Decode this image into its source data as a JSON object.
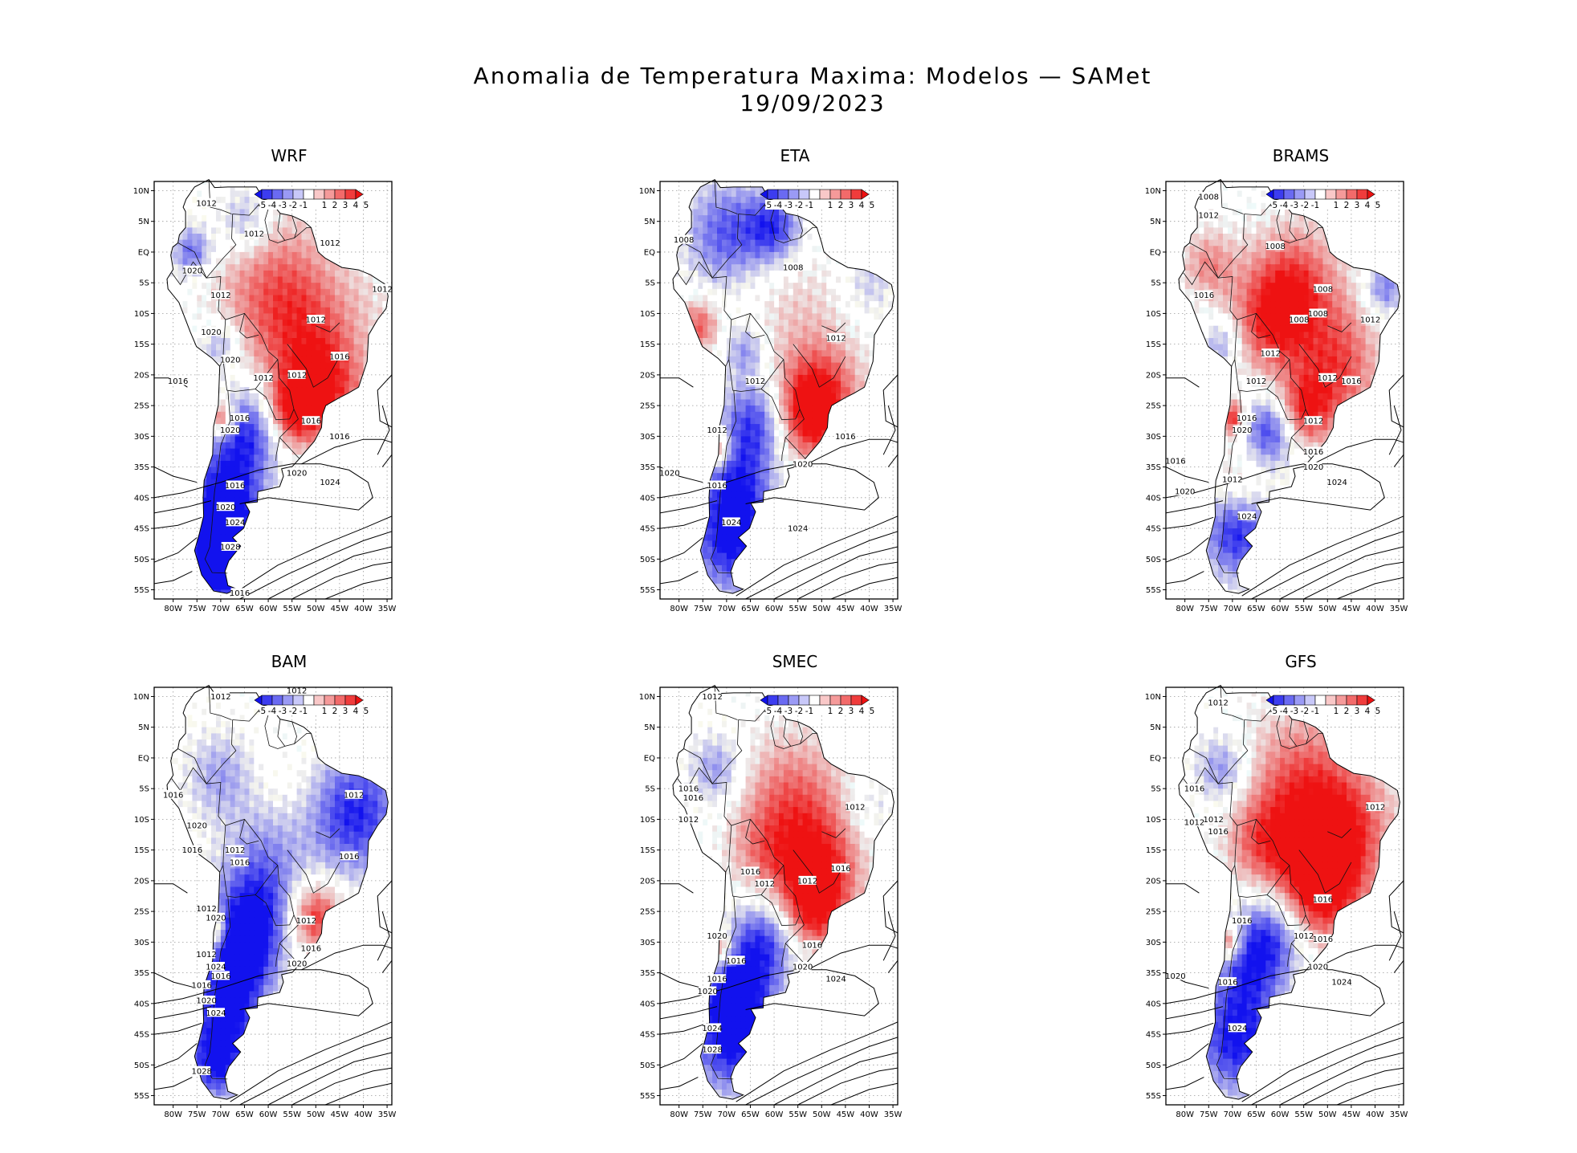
{
  "header": {
    "title": "Anomalia de Temperatura Maxima: Modelos — SAMet",
    "date": "19/09/2023"
  },
  "axes": {
    "lat_labels": [
      "10N",
      "5N",
      "EQ",
      "5S",
      "10S",
      "15S",
      "20S",
      "25S",
      "30S",
      "35S",
      "40S",
      "45S",
      "50S",
      "55S"
    ],
    "lon_labels": [
      "80W",
      "75W",
      "70W",
      "65W",
      "60W",
      "55W",
      "50W",
      "45W",
      "40W",
      "35W"
    ],
    "lat_range": [
      11.5,
      -56.5
    ],
    "lon_range": [
      -84,
      -34
    ]
  },
  "colorbar": {
    "labels": [
      "-5",
      "-4",
      "-3",
      "-2",
      "-1",
      "1",
      "2",
      "3",
      "4",
      "5"
    ],
    "colors": [
      "#1111ee",
      "#3c3cf0",
      "#6a6af2",
      "#9a9af5",
      "#c8c8f9",
      "#ffffff",
      "#f9c8c8",
      "#f59a9a",
      "#f26a6a",
      "#f03c3c",
      "#ee1111"
    ]
  },
  "colors": {
    "warm": "#ee1c1c",
    "cold": "#1c1cee",
    "contour": "#000000"
  },
  "panels": [
    {
      "name": "WRF",
      "labels": [
        {
          "t": "1012",
          "lon": -73,
          "lat": 8
        },
        {
          "t": "1012",
          "lon": -63,
          "lat": 3
        },
        {
          "t": "1012",
          "lon": -47,
          "lat": 1.5
        },
        {
          "t": "1020",
          "lon": -76,
          "lat": -3
        },
        {
          "t": "1012",
          "lon": -70,
          "lat": -7
        },
        {
          "t": "1012",
          "lon": -50,
          "lat": -11
        },
        {
          "t": "1012",
          "lon": -36,
          "lat": -6
        },
        {
          "t": "1020",
          "lon": -72,
          "lat": -13
        },
        {
          "t": "1020",
          "lon": -68,
          "lat": -17.5
        },
        {
          "t": "1016",
          "lon": -79,
          "lat": -21
        },
        {
          "t": "1012",
          "lon": -61,
          "lat": -20.5
        },
        {
          "t": "1012",
          "lon": -54,
          "lat": -20
        },
        {
          "t": "1016",
          "lon": -45,
          "lat": -17
        },
        {
          "t": "1016",
          "lon": -66,
          "lat": -27
        },
        {
          "t": "1020",
          "lon": -68,
          "lat": -29
        },
        {
          "t": "1016",
          "lon": -51,
          "lat": -27.5
        },
        {
          "t": "1016",
          "lon": -45,
          "lat": -30
        },
        {
          "t": "1020",
          "lon": -54,
          "lat": -36
        },
        {
          "t": "1024",
          "lon": -47,
          "lat": -37.5
        },
        {
          "t": "1016",
          "lon": -67,
          "lat": -38
        },
        {
          "t": "1020",
          "lon": -69,
          "lat": -41.5
        },
        {
          "t": "1024",
          "lon": -67,
          "lat": -44
        },
        {
          "t": "1028",
          "lon": -68,
          "lat": -48
        },
        {
          "t": "1016",
          "lon": -66,
          "lat": -55.5
        }
      ],
      "zones": [
        {
          "lon": -60,
          "lat": -5,
          "r": 9,
          "v": 2.4
        },
        {
          "lon": -53,
          "lat": -12,
          "r": 8,
          "v": 2.8
        },
        {
          "lon": -48,
          "lat": -22,
          "r": 6,
          "v": 4.2
        },
        {
          "lon": -55,
          "lat": -26,
          "r": 4,
          "v": 4.5
        },
        {
          "lon": -38,
          "lat": -8,
          "r": 5,
          "v": 0.6
        },
        {
          "lon": -65,
          "lat": 5,
          "r": 4,
          "v": -2.5
        },
        {
          "lon": -64,
          "lat": -29,
          "r": 5,
          "v": -4.3
        },
        {
          "lon": -69,
          "lat": -38,
          "r": 5,
          "v": -3.5
        },
        {
          "lon": -69,
          "lat": -46,
          "r": 6,
          "v": -5
        },
        {
          "lon": -71,
          "lat": -52,
          "r": 4,
          "v": -4.8
        },
        {
          "lon": -76,
          "lat": 0,
          "r": 3,
          "v": -3.5
        },
        {
          "lon": -70,
          "lat": -15,
          "r": 3,
          "v": -2.5
        },
        {
          "lon": -70,
          "lat": -27,
          "r": 2,
          "v": 4.5
        }
      ]
    },
    {
      "name": "ETA",
      "labels": [
        {
          "t": "1008",
          "lon": -79,
          "lat": 2
        },
        {
          "t": "1008",
          "lon": -56,
          "lat": -2.5
        },
        {
          "t": "1012",
          "lon": -47,
          "lat": -14
        },
        {
          "t": "1012",
          "lon": -64,
          "lat": -21
        },
        {
          "t": "1012",
          "lon": -72,
          "lat": -29
        },
        {
          "t": "1016",
          "lon": -45,
          "lat": -30
        },
        {
          "t": "1020",
          "lon": -54,
          "lat": -34.5
        },
        {
          "t": "1020",
          "lon": -82,
          "lat": -36
        },
        {
          "t": "1016",
          "lon": -72,
          "lat": -38
        },
        {
          "t": "1024",
          "lon": -69,
          "lat": -44
        },
        {
          "t": "1024",
          "lon": -55,
          "lat": -45
        }
      ],
      "zones": [
        {
          "lon": -70,
          "lat": 3,
          "r": 6,
          "v": -3.6
        },
        {
          "lon": -60,
          "lat": 4,
          "r": 4,
          "v": -4
        },
        {
          "lon": -55,
          "lat": -10,
          "r": 8,
          "v": 1.3
        },
        {
          "lon": -50,
          "lat": -23,
          "r": 6,
          "v": 3.6
        },
        {
          "lon": -53,
          "lat": -27,
          "r": 5,
          "v": 4
        },
        {
          "lon": -40,
          "lat": -5,
          "r": 4,
          "v": -1.5
        },
        {
          "lon": -64,
          "lat": -28,
          "r": 5,
          "v": -4.3
        },
        {
          "lon": -68,
          "lat": -38,
          "r": 5,
          "v": -3.5
        },
        {
          "lon": -69,
          "lat": -47,
          "r": 6,
          "v": -5
        },
        {
          "lon": -76,
          "lat": -12,
          "r": 3,
          "v": 3.5
        },
        {
          "lon": -66,
          "lat": -16,
          "r": 3,
          "v": -2.5
        },
        {
          "lon": -72,
          "lat": -32,
          "r": 2,
          "v": 4.5
        }
      ]
    },
    {
      "name": "BRAMS",
      "labels": [
        {
          "t": "1008",
          "lon": -75,
          "lat": 9
        },
        {
          "t": "1012",
          "lon": -75,
          "lat": 6
        },
        {
          "t": "1008",
          "lon": -61,
          "lat": 1
        },
        {
          "t": "1016",
          "lon": -76,
          "lat": -7
        },
        {
          "t": "1008",
          "lon": -51,
          "lat": -6
        },
        {
          "t": "1008",
          "lon": -52,
          "lat": -10
        },
        {
          "t": "1008",
          "lon": -56,
          "lat": -11
        },
        {
          "t": "1012",
          "lon": -41,
          "lat": -11
        },
        {
          "t": "1012",
          "lon": -62,
          "lat": -16.5
        },
        {
          "t": "1012",
          "lon": -65,
          "lat": -21
        },
        {
          "t": "1012",
          "lon": -50,
          "lat": -20.5
        },
        {
          "t": "1016",
          "lon": -45,
          "lat": -21
        },
        {
          "t": "1016",
          "lon": -67,
          "lat": -27
        },
        {
          "t": "1020",
          "lon": -68,
          "lat": -29
        },
        {
          "t": "1012",
          "lon": -53,
          "lat": -27.5
        },
        {
          "t": "1016",
          "lon": -53,
          "lat": -32.5
        },
        {
          "t": "1020",
          "lon": -53,
          "lat": -35
        },
        {
          "t": "1016",
          "lon": -82,
          "lat": -34
        },
        {
          "t": "1012",
          "lon": -70,
          "lat": -37
        },
        {
          "t": "1020",
          "lon": -80,
          "lat": -39
        },
        {
          "t": "1024",
          "lon": -48,
          "lat": -37.5
        },
        {
          "t": "1024",
          "lon": -67,
          "lat": -43
        }
      ],
      "zones": [
        {
          "lon": -57,
          "lat": -6,
          "r": 7,
          "v": 4.2
        },
        {
          "lon": -62,
          "lat": -12,
          "r": 6,
          "v": 3.2
        },
        {
          "lon": -48,
          "lat": -20,
          "r": 6,
          "v": 3.6
        },
        {
          "lon": -55,
          "lat": -26,
          "r": 4,
          "v": 4.2
        },
        {
          "lon": -38,
          "lat": -6,
          "r": 3,
          "v": -3
        },
        {
          "lon": -45,
          "lat": -12,
          "r": 5,
          "v": 0.8
        },
        {
          "lon": -62,
          "lat": -29,
          "r": 4,
          "v": -4.3
        },
        {
          "lon": -69,
          "lat": -37,
          "r": 4,
          "v": 1.5
        },
        {
          "lon": -69,
          "lat": -46,
          "r": 5,
          "v": -4.5
        },
        {
          "lon": -75,
          "lat": -2,
          "r": 4,
          "v": 2.5
        },
        {
          "lon": -72,
          "lat": -15,
          "r": 3,
          "v": -2.5
        },
        {
          "lon": -70,
          "lat": -27,
          "r": 2,
          "v": 4.5
        }
      ]
    },
    {
      "name": "BAM",
      "labels": [
        {
          "t": "1012",
          "lon": -70,
          "lat": 10
        },
        {
          "t": "1012",
          "lon": -54,
          "lat": 11
        },
        {
          "t": "1016",
          "lon": -80,
          "lat": -6
        },
        {
          "t": "1012",
          "lon": -42,
          "lat": -6
        },
        {
          "t": "1020",
          "lon": -75,
          "lat": -11
        },
        {
          "t": "1016",
          "lon": -76,
          "lat": -15
        },
        {
          "t": "1012",
          "lon": -67,
          "lat": -15
        },
        {
          "t": "1016",
          "lon": -66,
          "lat": -17
        },
        {
          "t": "1016",
          "lon": -43,
          "lat": -16
        },
        {
          "t": "1012",
          "lon": -73,
          "lat": -24.5
        },
        {
          "t": "1020",
          "lon": -71,
          "lat": -26
        },
        {
          "t": "1012",
          "lon": -52,
          "lat": -26.5
        },
        {
          "t": "1016",
          "lon": -51,
          "lat": -31
        },
        {
          "t": "1020",
          "lon": -54,
          "lat": -33.5
        },
        {
          "t": "1012",
          "lon": -73,
          "lat": -32
        },
        {
          "t": "1024",
          "lon": -71,
          "lat": -34
        },
        {
          "t": "1016",
          "lon": -70,
          "lat": -35.5
        },
        {
          "t": "1016",
          "lon": -74,
          "lat": -37
        },
        {
          "t": "1020",
          "lon": -73,
          "lat": -39.5
        },
        {
          "t": "1024",
          "lon": -71,
          "lat": -41.5
        },
        {
          "t": "1028",
          "lon": -74,
          "lat": -51
        }
      ],
      "zones": [
        {
          "lon": -42,
          "lat": -9,
          "r": 7,
          "v": -4.8
        },
        {
          "lon": -50,
          "lat": -26,
          "r": 4,
          "v": 4.6
        },
        {
          "lon": -60,
          "lat": -14,
          "r": 6,
          "v": -2
        },
        {
          "lon": -63,
          "lat": -25,
          "r": 6,
          "v": -4.6
        },
        {
          "lon": -66,
          "lat": -33,
          "r": 5,
          "v": -4.7
        },
        {
          "lon": -69,
          "lat": -42,
          "r": 5,
          "v": -4.8
        },
        {
          "lon": -71,
          "lat": -50,
          "r": 4,
          "v": -4.6
        },
        {
          "lon": -55,
          "lat": -6,
          "r": 7,
          "v": 0.8
        },
        {
          "lon": -70,
          "lat": -3,
          "r": 5,
          "v": -2.2
        },
        {
          "lon": -72,
          "lat": -28,
          "r": 2,
          "v": 4.5
        }
      ]
    },
    {
      "name": "SMEC",
      "labels": [
        {
          "t": "1012",
          "lon": -73,
          "lat": 10
        },
        {
          "t": "1016",
          "lon": -78,
          "lat": -5
        },
        {
          "t": "1016",
          "lon": -77,
          "lat": -6.5
        },
        {
          "t": "1012",
          "lon": -78,
          "lat": -10
        },
        {
          "t": "1012",
          "lon": -43,
          "lat": -8
        },
        {
          "t": "1016",
          "lon": -46,
          "lat": -18
        },
        {
          "t": "1016",
          "lon": -65,
          "lat": -18.5
        },
        {
          "t": "1012",
          "lon": -62,
          "lat": -20.5
        },
        {
          "t": "1012",
          "lon": -53,
          "lat": -20
        },
        {
          "t": "1020",
          "lon": -72,
          "lat": -29
        },
        {
          "t": "1016",
          "lon": -52,
          "lat": -30.5
        },
        {
          "t": "1016",
          "lon": -68,
          "lat": -33
        },
        {
          "t": "1020",
          "lon": -54,
          "lat": -34
        },
        {
          "t": "1016",
          "lon": -72,
          "lat": -36
        },
        {
          "t": "1020",
          "lon": -74,
          "lat": -38
        },
        {
          "t": "1024",
          "lon": -47,
          "lat": -36
        },
        {
          "t": "1024",
          "lon": -73,
          "lat": -44
        },
        {
          "t": "1028",
          "lon": -73,
          "lat": -47.5
        }
      ],
      "zones": [
        {
          "lon": -56,
          "lat": -8,
          "r": 8,
          "v": 3.6
        },
        {
          "lon": -50,
          "lat": -18,
          "r": 6,
          "v": 3.6
        },
        {
          "lon": -52,
          "lat": -25,
          "r": 5,
          "v": 4.2
        },
        {
          "lon": -62,
          "lat": -16,
          "r": 5,
          "v": 1.8
        },
        {
          "lon": -40,
          "lat": -8,
          "r": 4,
          "v": -1.2
        },
        {
          "lon": -62,
          "lat": -30,
          "r": 5,
          "v": -4.3
        },
        {
          "lon": -68,
          "lat": -38,
          "r": 5,
          "v": -4.2
        },
        {
          "lon": -69,
          "lat": -46,
          "r": 6,
          "v": -5
        },
        {
          "lon": -72,
          "lat": -2,
          "r": 4,
          "v": -2.5
        },
        {
          "lon": -72,
          "lat": -31,
          "r": 2,
          "v": 4.5
        }
      ]
    },
    {
      "name": "GFS",
      "labels": [
        {
          "t": "1012",
          "lon": -73,
          "lat": 9
        },
        {
          "t": "1016",
          "lon": -78,
          "lat": -5
        },
        {
          "t": "1012",
          "lon": -74,
          "lat": -10
        },
        {
          "t": "1012",
          "lon": -78,
          "lat": -10.5
        },
        {
          "t": "1016",
          "lon": -73,
          "lat": -12
        },
        {
          "t": "1012",
          "lon": -40,
          "lat": -8
        },
        {
          "t": "1016",
          "lon": -51,
          "lat": -23
        },
        {
          "t": "1016",
          "lon": -68,
          "lat": -26.5
        },
        {
          "t": "1012",
          "lon": -55,
          "lat": -29
        },
        {
          "t": "1016",
          "lon": -51,
          "lat": -29.5
        },
        {
          "t": "1020",
          "lon": -52,
          "lat": -34
        },
        {
          "t": "1020",
          "lon": -82,
          "lat": -35.5
        },
        {
          "t": "1016",
          "lon": -71,
          "lat": -36.5
        },
        {
          "t": "1024",
          "lon": -47,
          "lat": -36.5
        },
        {
          "t": "1024",
          "lon": -69,
          "lat": -44
        }
      ],
      "zones": [
        {
          "lon": -55,
          "lat": -6,
          "r": 9,
          "v": 4
        },
        {
          "lon": -48,
          "lat": -14,
          "r": 7,
          "v": 4
        },
        {
          "lon": -52,
          "lat": -22,
          "r": 6,
          "v": 4.4
        },
        {
          "lon": -64,
          "lat": -14,
          "r": 5,
          "v": 2.5
        },
        {
          "lon": -40,
          "lat": -8,
          "r": 4,
          "v": 0.5
        },
        {
          "lon": -62,
          "lat": -29,
          "r": 5,
          "v": -4.2
        },
        {
          "lon": -67,
          "lat": -35,
          "r": 5,
          "v": -3
        },
        {
          "lon": -69,
          "lat": -46,
          "r": 6,
          "v": -5
        },
        {
          "lon": -72,
          "lat": -2,
          "r": 4,
          "v": -2.8
        },
        {
          "lon": -71,
          "lat": -30,
          "r": 2,
          "v": 4.5
        }
      ]
    }
  ]
}
